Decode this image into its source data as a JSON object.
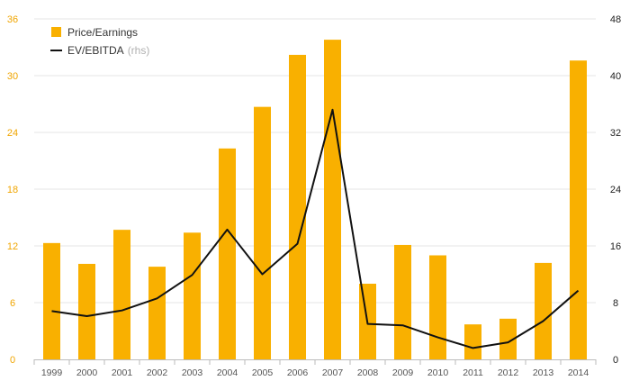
{
  "chart_data": {
    "type": "bar+line",
    "categories": [
      "1999",
      "2000",
      "2001",
      "2002",
      "2003",
      "2004",
      "2005",
      "2006",
      "2007",
      "2008",
      "2009",
      "2010",
      "2011",
      "2012",
      "2013",
      "2014"
    ],
    "series": [
      {
        "name": "Price/Earnings",
        "type": "bar",
        "axis": "left",
        "values": [
          12.3,
          10.1,
          13.7,
          9.8,
          13.4,
          22.3,
          26.7,
          32.2,
          33.8,
          8.0,
          12.1,
          11.0,
          3.7,
          4.3,
          10.2,
          31.6
        ]
      },
      {
        "name": "EV/EBITDA",
        "name_suffix": "(rhs)",
        "type": "line",
        "axis": "right",
        "values": [
          6.8,
          6.1,
          6.9,
          8.6,
          11.9,
          18.3,
          12.0,
          16.3,
          35.2,
          5.0,
          4.8,
          3.1,
          1.6,
          2.4,
          5.4,
          9.7
        ]
      }
    ],
    "left_axis": {
      "min": 0,
      "max": 36,
      "ticks": [
        0,
        6,
        12,
        18,
        24,
        30,
        36
      ]
    },
    "right_axis": {
      "min": 0,
      "max": 48,
      "ticks": [
        0,
        8,
        16,
        24,
        32,
        40,
        48
      ]
    },
    "title": "",
    "xlabel": "",
    "ylabel": "",
    "grid": true,
    "legend_position": "top-left"
  },
  "colors": {
    "bar": "#F9B000",
    "line": "#111111",
    "left_ticks": "#F0A500",
    "grid": "#E6E6E6",
    "axis": "#BBBBBB"
  },
  "legend": {
    "bar_label": "Price/Earnings",
    "line_label": "EV/EBITDA",
    "line_suffix": "(rhs)"
  }
}
